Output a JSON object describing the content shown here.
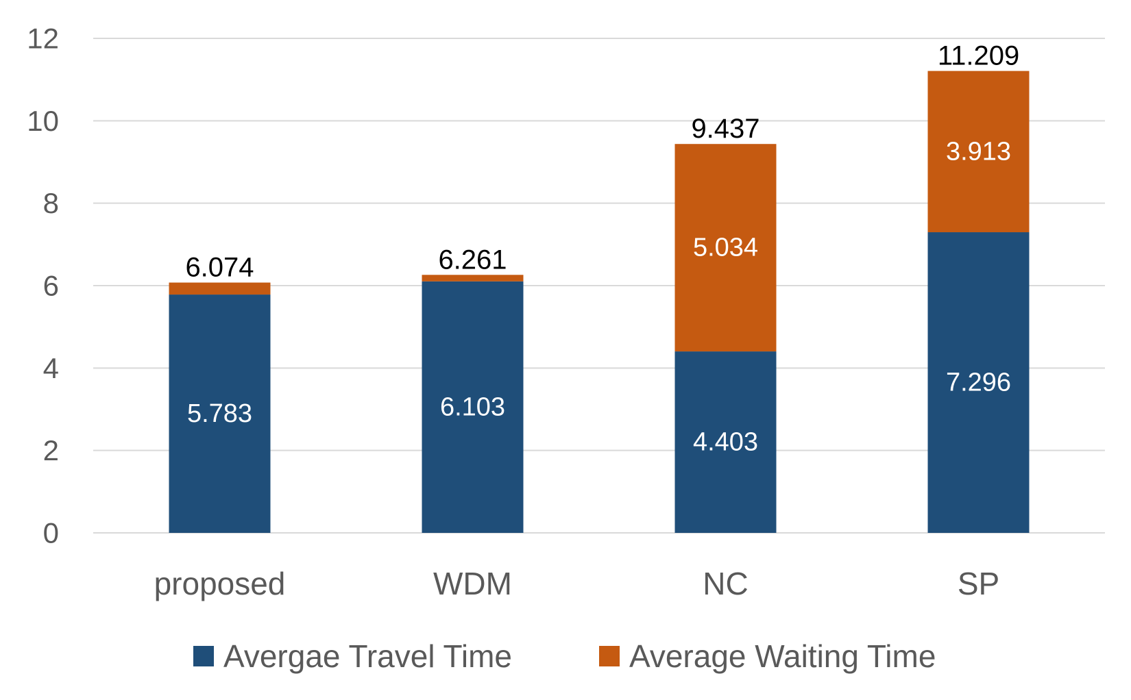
{
  "chart_data": {
    "type": "bar",
    "stacked": true,
    "categories": [
      "proposed",
      "WDM",
      "NC",
      "SP"
    ],
    "series": [
      {
        "name": "Avergae Travel Time",
        "values": [
          5.783,
          6.103,
          4.403,
          7.296
        ],
        "color": "#1f4e79"
      },
      {
        "name": "Average Waiting Time",
        "values": [
          0.291,
          0.158,
          5.034,
          3.913
        ],
        "color": "#c55a11"
      }
    ],
    "segment_labels": [
      [
        "5.783",
        "6.103",
        "4.403",
        "7.296"
      ],
      [
        "",
        "",
        "5.034",
        "3.913"
      ]
    ],
    "totals": [
      "6.074",
      "6.261",
      "9.437",
      "11.209"
    ],
    "yticks": [
      "0",
      "2",
      "4",
      "6",
      "8",
      "10",
      "12"
    ],
    "ylim": [
      0,
      12
    ],
    "grid": true,
    "legend_position": "bottom"
  }
}
